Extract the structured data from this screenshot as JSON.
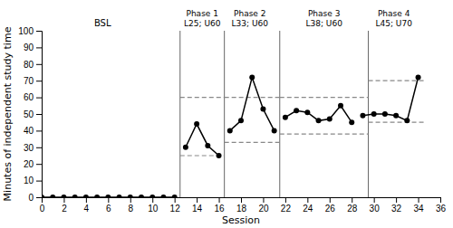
{
  "chart_data": {
    "type": "line",
    "x_label": "Session",
    "y_label": "Minutes of independent study time",
    "x": [
      0,
      1,
      2,
      3,
      4,
      5,
      6,
      7,
      8,
      9,
      10,
      11,
      12,
      13,
      14,
      15,
      16,
      17,
      18,
      19,
      20,
      21,
      22,
      23,
      24,
      25,
      26,
      27,
      28,
      29,
      30,
      31,
      32,
      33,
      34
    ],
    "series": [
      {
        "color": "#000000",
        "marker": "circle",
        "values": [
          0,
          0,
          0,
          0,
          0,
          0,
          0,
          0,
          0,
          0,
          0,
          0,
          0,
          null,
          null,
          null,
          null,
          null,
          null,
          null,
          null,
          null,
          null,
          null,
          null,
          null,
          null,
          null,
          null,
          null,
          null,
          null,
          null,
          null,
          null
        ]
      },
      {
        "color": "#000000",
        "marker": "circle",
        "values": [
          null,
          null,
          null,
          null,
          null,
          null,
          null,
          null,
          null,
          null,
          null,
          null,
          null,
          30,
          44,
          31,
          25,
          null,
          null,
          null,
          null,
          null,
          null,
          null,
          null,
          null,
          null,
          null,
          null,
          null,
          null,
          null,
          null,
          null,
          null
        ]
      },
      {
        "color": "#000000",
        "marker": "circle",
        "values": [
          null,
          null,
          null,
          null,
          null,
          null,
          null,
          null,
          null,
          null,
          null,
          null,
          null,
          null,
          null,
          null,
          null,
          40,
          46,
          72,
          53,
          40,
          null,
          null,
          null,
          null,
          null,
          null,
          null,
          null,
          null,
          null,
          null,
          null,
          null
        ]
      },
      {
        "color": "#000000",
        "marker": "circle",
        "values": [
          null,
          null,
          null,
          null,
          null,
          null,
          null,
          null,
          null,
          null,
          null,
          null,
          null,
          null,
          null,
          null,
          null,
          null,
          null,
          null,
          null,
          null,
          48,
          52,
          51,
          46,
          47,
          55,
          45,
          null,
          null,
          null,
          null,
          null,
          null
        ]
      },
      {
        "color": "#000000",
        "marker": "circle",
        "values": [
          null,
          null,
          null,
          null,
          null,
          null,
          null,
          null,
          null,
          null,
          null,
          null,
          null,
          null,
          null,
          null,
          null,
          null,
          null,
          null,
          null,
          null,
          null,
          null,
          null,
          null,
          null,
          null,
          null,
          49,
          50,
          50,
          49,
          46,
          72
        ]
      }
    ],
    "phase_lines": {
      "color": "#666666",
      "x": [
        12.5,
        16.5,
        21.5,
        29.5
      ]
    },
    "criterion_bands": {
      "color": "#888888",
      "line_style": "dashed",
      "bands": [
        {
          "lower": 25,
          "upper": 60,
          "x_start": 12.5,
          "x_end": 16.5
        },
        {
          "lower": 33,
          "upper": 60,
          "x_start": 16.5,
          "x_end": 21.5
        },
        {
          "lower": 38,
          "upper": 60,
          "x_start": 21.5,
          "x_end": 29.5
        },
        {
          "lower": 45,
          "upper": 70,
          "x_start": 29.5,
          "x_end": 34.5
        }
      ]
    },
    "annotations": [
      {
        "text": "BSL",
        "x": 5.5
      },
      {
        "text": "Phase 1\nL25; U60",
        "x": 14.5
      },
      {
        "text": "Phase 2\nL33; U60",
        "x": 18.8
      },
      {
        "text": "Phase 3\nL38; U60",
        "x": 25.5
      },
      {
        "text": "Phase 4\nL45; U70",
        "x": 31.8
      }
    ],
    "xlim": [
      0,
      36
    ],
    "ylim": [
      0,
      100
    ],
    "xticks": [
      0,
      2,
      4,
      6,
      8,
      10,
      12,
      14,
      16,
      18,
      20,
      22,
      24,
      26,
      28,
      30,
      32,
      34,
      36
    ],
    "yticks": [
      0,
      10,
      20,
      30,
      40,
      50,
      60,
      70,
      80,
      90,
      100
    ],
    "grid": false
  }
}
